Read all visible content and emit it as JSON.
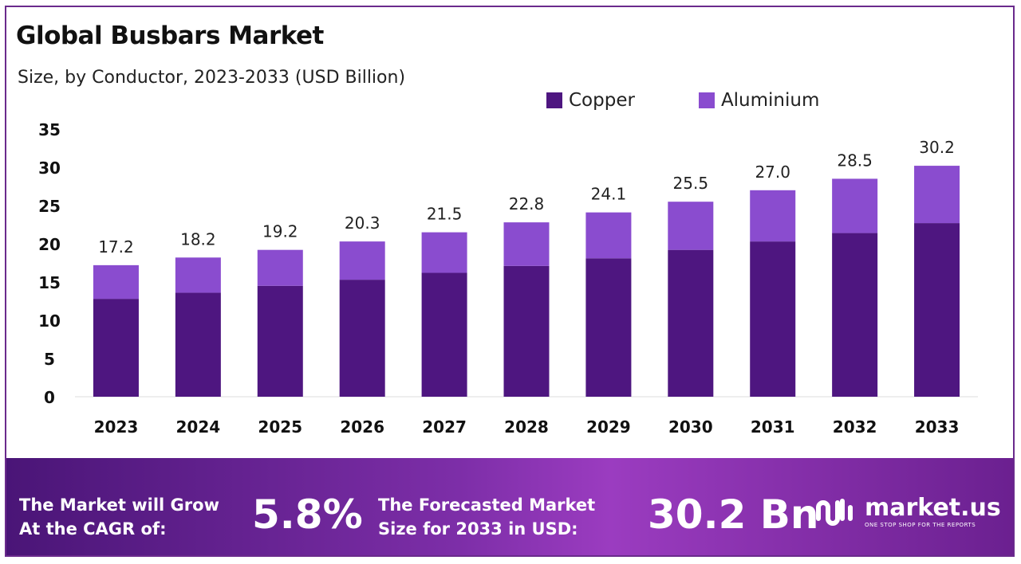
{
  "title": "Global Busbars Market",
  "subtitle": "Size, by Conductor, 2023-2033 (USD Billion)",
  "colors": {
    "copper": "#4e1680",
    "aluminium": "#8a4ccf",
    "axis": "#dddddd",
    "text": "#222222"
  },
  "chart_data": {
    "type": "bar",
    "stacked": true,
    "categories": [
      "2023",
      "2024",
      "2025",
      "2026",
      "2027",
      "2028",
      "2029",
      "2030",
      "2031",
      "2032",
      "2033"
    ],
    "series": [
      {
        "name": "Copper",
        "values": [
          12.8,
          13.6,
          14.5,
          15.3,
          16.2,
          17.1,
          18.1,
          19.2,
          20.3,
          21.4,
          22.7
        ]
      },
      {
        "name": "Aluminium",
        "values": [
          4.4,
          4.6,
          4.7,
          5.0,
          5.3,
          5.7,
          6.0,
          6.3,
          6.7,
          7.1,
          7.5
        ]
      }
    ],
    "totals": [
      "17.2",
      "18.2",
      "19.2",
      "20.3",
      "21.5",
      "22.8",
      "24.1",
      "25.5",
      "27.0",
      "28.5",
      "30.2"
    ],
    "y_ticks": [
      "0",
      "5",
      "10",
      "15",
      "20",
      "25",
      "30",
      "35"
    ],
    "ylim": [
      0,
      35
    ],
    "legend": [
      "Copper",
      "Aluminium"
    ],
    "legend_position": "top-right"
  },
  "banner": {
    "cagr_label_line1": "The Market will Grow",
    "cagr_label_line2": "At the CAGR of:",
    "cagr_value": "5.8%",
    "forecast_label_line1": "The Forecasted Market",
    "forecast_label_line2": "Size for 2033 in USD:",
    "forecast_value": "30.2 Bn",
    "logo_text": "market.us",
    "logo_tagline": "ONE STOP SHOP FOR THE REPORTS"
  }
}
